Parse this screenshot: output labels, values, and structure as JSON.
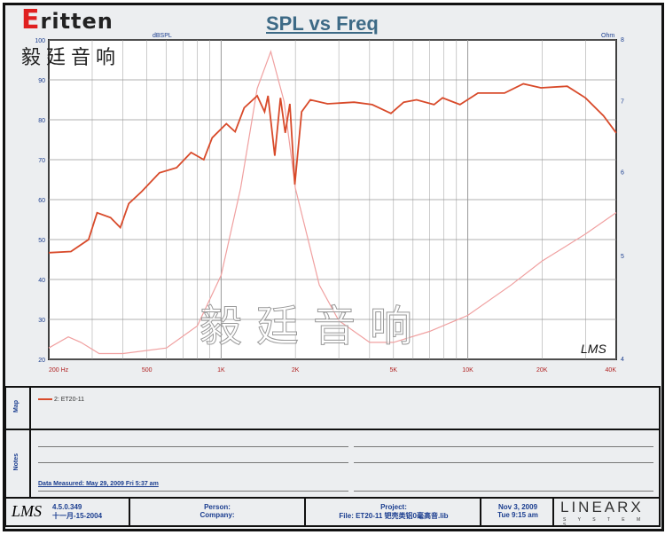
{
  "brand": {
    "logo": "Eritten",
    "chinese": "毅廷音响",
    "watermark": "毅廷音响"
  },
  "chart_data": {
    "type": "line",
    "title": "SPL vs Freq",
    "xscale": "log",
    "xlim": [
      200,
      40000
    ],
    "ylabel_left": "dBSPL",
    "ylim_left": [
      20,
      100
    ],
    "ylabel_right": "Ohm",
    "ylim_right": [
      4,
      8
    ],
    "yscale_right": "log",
    "grid": true,
    "x_ticks": [
      {
        "v": 200,
        "l": "200  Hz"
      },
      {
        "v": 500,
        "l": "500"
      },
      {
        "v": 1000,
        "l": "1K"
      },
      {
        "v": 2000,
        "l": "2K"
      },
      {
        "v": 5000,
        "l": "5K"
      },
      {
        "v": 10000,
        "l": "10K"
      },
      {
        "v": 20000,
        "l": "20K"
      },
      {
        "v": 40000,
        "l": "40K"
      }
    ],
    "y_ticks_left": [
      20,
      30,
      40,
      50,
      60,
      70,
      80,
      90,
      100
    ],
    "y_ticks_right": [
      4,
      5,
      6,
      7,
      8
    ],
    "colors": {
      "spl": "#d84a2a",
      "impedance": "#f0a0a0",
      "grid": "#999999"
    },
    "series": [
      {
        "name": "2: ET20-11",
        "axis": "left",
        "points": [
          [
            200,
            46.7
          ],
          [
            246,
            47
          ],
          [
            290,
            50
          ],
          [
            314,
            56.7
          ],
          [
            356,
            55.5
          ],
          [
            390,
            53
          ],
          [
            422,
            59
          ],
          [
            476,
            62
          ],
          [
            562,
            66.7
          ],
          [
            660,
            68
          ],
          [
            755,
            71.8
          ],
          [
            850,
            70
          ],
          [
            920,
            75.5
          ],
          [
            1050,
            79
          ],
          [
            1140,
            77
          ],
          [
            1240,
            83
          ],
          [
            1400,
            86
          ],
          [
            1500,
            82
          ],
          [
            1550,
            86
          ],
          [
            1650,
            71
          ],
          [
            1740,
            85.5
          ],
          [
            1820,
            76.7
          ],
          [
            1900,
            84
          ],
          [
            1990,
            63.8
          ],
          [
            2120,
            82
          ],
          [
            2300,
            85
          ],
          [
            2700,
            84
          ],
          [
            3460,
            84.4
          ],
          [
            4100,
            83.8
          ],
          [
            4880,
            81.6
          ],
          [
            5500,
            84.4
          ],
          [
            6200,
            85
          ],
          [
            7300,
            83.8
          ],
          [
            7900,
            85.5
          ],
          [
            9300,
            83.8
          ],
          [
            11000,
            86.7
          ],
          [
            14100,
            86.7
          ],
          [
            16800,
            89
          ],
          [
            19800,
            88
          ],
          [
            25300,
            88.4
          ],
          [
            30000,
            85.5
          ],
          [
            35500,
            81
          ],
          [
            40000,
            76.7
          ]
        ]
      },
      {
        "axis": "right",
        "points": [
          [
            200,
            4.1
          ],
          [
            240,
            4.2
          ],
          [
            270,
            4.15
          ],
          [
            320,
            4.05
          ],
          [
            400,
            4.05
          ],
          [
            600,
            4.1
          ],
          [
            800,
            4.3
          ],
          [
            1000,
            4.8
          ],
          [
            1200,
            5.8
          ],
          [
            1400,
            7.2
          ],
          [
            1590,
            7.8
          ],
          [
            1800,
            7.0
          ],
          [
            2000,
            5.8
          ],
          [
            2500,
            4.7
          ],
          [
            3000,
            4.35
          ],
          [
            4000,
            4.15
          ],
          [
            5000,
            4.15
          ],
          [
            7000,
            4.25
          ],
          [
            10000,
            4.4
          ],
          [
            15000,
            4.7
          ],
          [
            20000,
            4.95
          ],
          [
            30000,
            5.25
          ],
          [
            40000,
            5.5
          ]
        ]
      }
    ],
    "annotation": "LMS"
  },
  "legend": {
    "label": "Map",
    "entry": "2: ET20-11"
  },
  "notes": {
    "label": "Notes",
    "measured": "Data Measured: May 29, 2009  Fri 5:37 am"
  },
  "footer": {
    "logo": "LMS",
    "version": "4.5.0.349",
    "serial": "十一月-15-2004",
    "person": "Person:",
    "company": "Company:",
    "project": "Project:",
    "file": "File: ET20-11 钯壳类铝0毫高音.lib",
    "date": "Nov  3, 2009",
    "time": "Tue  9:15 am",
    "brand": "LINEARX",
    "brand_sub": "S Y S T E M S"
  }
}
